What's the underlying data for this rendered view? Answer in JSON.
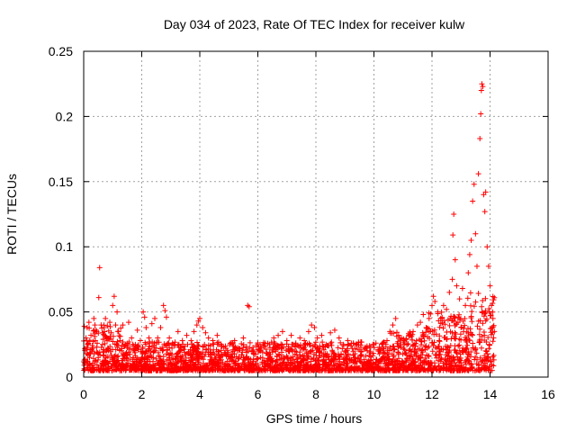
{
  "chart_data": {
    "type": "scatter",
    "title": "Day 034 of 2023, Rate Of TEC Index for receiver kulw",
    "xlabel": "GPS time / hours",
    "ylabel": "ROTI / TECUs",
    "xlim": [
      0,
      16
    ],
    "ylim": [
      0,
      0.25
    ],
    "xticks": [
      0,
      2,
      4,
      6,
      8,
      10,
      12,
      14,
      16
    ],
    "xtick_labels": [
      "0",
      "2",
      "4",
      "6",
      "8",
      "10",
      "12",
      "14",
      "16"
    ],
    "yticks": [
      0,
      0.05,
      0.1,
      0.15,
      0.2,
      0.25
    ],
    "ytick_labels": [
      "0",
      "0.05",
      "0.1",
      "0.15",
      "0.2",
      "0.25"
    ],
    "grid": true,
    "marker": "+",
    "color": "#ff0000",
    "series": [
      {
        "name": "ROTI",
        "points": [
          [
            0.02,
            0.013
          ],
          [
            0.05,
            0.022
          ],
          [
            0.08,
            0.03
          ],
          [
            0.1,
            0.018
          ],
          [
            0.12,
            0.038
          ],
          [
            0.15,
            0.025
          ],
          [
            0.18,
            0.042
          ],
          [
            0.2,
            0.015
          ],
          [
            0.25,
            0.032
          ],
          [
            0.3,
            0.02
          ],
          [
            0.35,
            0.045
          ],
          [
            0.4,
            0.028
          ],
          [
            0.45,
            0.035
          ],
          [
            0.5,
            0.018
          ],
          [
            0.52,
            0.061
          ],
          [
            0.55,
            0.084
          ],
          [
            0.6,
            0.04
          ],
          [
            0.65,
            0.025
          ],
          [
            0.7,
            0.038
          ],
          [
            0.75,
            0.045
          ],
          [
            0.8,
            0.03
          ],
          [
            0.85,
            0.022
          ],
          [
            0.9,
            0.042
          ],
          [
            0.95,
            0.034
          ],
          [
            1.0,
            0.055
          ],
          [
            1.05,
            0.062
          ],
          [
            1.1,
            0.04
          ],
          [
            1.15,
            0.05
          ],
          [
            1.2,
            0.035
          ],
          [
            1.25,
            0.028
          ],
          [
            1.35,
            0.04
          ],
          [
            1.45,
            0.025
          ],
          [
            1.55,
            0.042
          ],
          [
            1.65,
            0.03
          ],
          [
            1.75,
            0.022
          ],
          [
            1.85,
            0.036
          ],
          [
            1.95,
            0.028
          ],
          [
            2.05,
            0.05
          ],
          [
            2.1,
            0.046
          ],
          [
            2.15,
            0.038
          ],
          [
            2.25,
            0.03
          ],
          [
            2.35,
            0.041
          ],
          [
            2.45,
            0.045
          ],
          [
            2.55,
            0.03
          ],
          [
            2.65,
            0.038
          ],
          [
            2.75,
            0.055
          ],
          [
            2.8,
            0.051
          ],
          [
            2.85,
            0.046
          ],
          [
            2.95,
            0.03
          ],
          [
            3.1,
            0.025
          ],
          [
            3.25,
            0.035
          ],
          [
            3.4,
            0.028
          ],
          [
            3.55,
            0.032
          ],
          [
            3.7,
            0.028
          ],
          [
            3.8,
            0.035
          ],
          [
            3.9,
            0.04
          ],
          [
            3.95,
            0.043
          ],
          [
            4.0,
            0.045
          ],
          [
            4.1,
            0.038
          ],
          [
            4.2,
            0.034
          ],
          [
            4.3,
            0.03
          ],
          [
            4.45,
            0.028
          ],
          [
            4.6,
            0.032
          ],
          [
            4.75,
            0.024
          ],
          [
            4.9,
            0.022
          ],
          [
            5.05,
            0.026
          ],
          [
            5.2,
            0.028
          ],
          [
            5.35,
            0.022
          ],
          [
            5.5,
            0.03
          ],
          [
            5.65,
            0.055
          ],
          [
            5.7,
            0.054
          ],
          [
            5.8,
            0.02
          ],
          [
            5.95,
            0.024
          ],
          [
            6.1,
            0.02
          ],
          [
            6.25,
            0.026
          ],
          [
            6.4,
            0.025
          ],
          [
            6.55,
            0.03
          ],
          [
            6.7,
            0.032
          ],
          [
            6.85,
            0.035
          ],
          [
            7.0,
            0.028
          ],
          [
            7.15,
            0.032
          ],
          [
            7.3,
            0.025
          ],
          [
            7.45,
            0.03
          ],
          [
            7.6,
            0.028
          ],
          [
            7.75,
            0.035
          ],
          [
            7.85,
            0.04
          ],
          [
            7.95,
            0.038
          ],
          [
            8.05,
            0.03
          ],
          [
            8.2,
            0.032
          ],
          [
            8.35,
            0.025
          ],
          [
            8.5,
            0.034
          ],
          [
            8.65,
            0.036
          ],
          [
            8.8,
            0.03
          ],
          [
            8.95,
            0.025
          ],
          [
            9.1,
            0.028
          ],
          [
            9.25,
            0.022
          ],
          [
            9.4,
            0.025
          ],
          [
            9.55,
            0.02
          ],
          [
            9.7,
            0.022
          ],
          [
            9.85,
            0.024
          ],
          [
            10.0,
            0.025
          ],
          [
            10.15,
            0.02
          ],
          [
            10.3,
            0.022
          ],
          [
            10.45,
            0.028
          ],
          [
            10.55,
            0.035
          ],
          [
            10.65,
            0.04
          ],
          [
            10.75,
            0.045
          ],
          [
            10.85,
            0.032
          ],
          [
            10.95,
            0.03
          ],
          [
            11.05,
            0.028
          ],
          [
            11.2,
            0.032
          ],
          [
            11.35,
            0.035
          ],
          [
            11.5,
            0.04
          ],
          [
            11.6,
            0.042
          ],
          [
            11.7,
            0.048
          ],
          [
            11.8,
            0.038
          ],
          [
            11.9,
            0.045
          ],
          [
            12.0,
            0.055
          ],
          [
            12.05,
            0.062
          ],
          [
            12.1,
            0.058
          ],
          [
            12.2,
            0.05
          ],
          [
            12.3,
            0.045
          ],
          [
            12.4,
            0.055
          ],
          [
            12.5,
            0.052
          ],
          [
            12.6,
            0.065
          ],
          [
            12.7,
            0.075
          ],
          [
            12.72,
            0.109
          ],
          [
            12.75,
            0.125
          ],
          [
            12.8,
            0.09
          ],
          [
            12.85,
            0.07
          ],
          [
            12.95,
            0.06
          ],
          [
            13.05,
            0.068
          ],
          [
            13.15,
            0.055
          ],
          [
            13.25,
            0.08
          ],
          [
            13.3,
            0.094
          ],
          [
            13.35,
            0.105
          ],
          [
            13.4,
            0.135
          ],
          [
            13.45,
            0.148
          ],
          [
            13.5,
            0.11
          ],
          [
            13.55,
            0.085
          ],
          [
            13.6,
            0.156
          ],
          [
            13.65,
            0.183
          ],
          [
            13.68,
            0.202
          ],
          [
            13.7,
            0.22
          ],
          [
            13.72,
            0.225
          ],
          [
            13.75,
            0.223
          ],
          [
            13.78,
            0.14
          ],
          [
            13.82,
            0.127
          ],
          [
            13.85,
            0.142
          ],
          [
            13.9,
            0.1
          ],
          [
            13.95,
            0.085
          ],
          [
            14.0,
            0.07
          ],
          [
            14.05,
            0.055
          ],
          [
            14.1,
            0.045
          ],
          [
            14.15,
            0.035
          ]
        ]
      }
    ]
  }
}
